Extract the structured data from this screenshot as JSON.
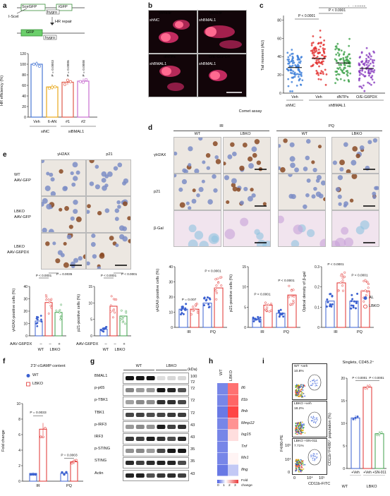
{
  "panels": {
    "a": {
      "letter": "a",
      "schematic": {
        "sce_gfp": "SceGFP",
        "igfp": "iGFP",
        "isce": "I-SceI",
        "hygro": "hygro",
        "hr_repair": "HR repair",
        "gfp": "GFP",
        "hygro2": "hygro"
      },
      "chart_data": {
        "type": "bar",
        "categories": [
          "Veh",
          "6-AN",
          "#1",
          "#2"
        ],
        "values": [
          100,
          57,
          66,
          68
        ],
        "ylabel": "HR efficiency (%)",
        "yticks": [
          0,
          20,
          40,
          60,
          80,
          100,
          120
        ],
        "ylim": [
          0,
          120
        ],
        "pvalues": [
          "P = 0.0003",
          "P = 0.0006",
          "P = 0.0008"
        ],
        "group_labels": [
          "siNC",
          "siBMAL1"
        ],
        "colors": [
          "#4a78d4",
          "#e8a81a",
          "#e05b4b",
          "#c86fd0"
        ]
      }
    },
    "b": {
      "letter": "b",
      "labels": [
        "Vehicle",
        "Vehicle",
        "dNTPs",
        "O/E-G6PDX"
      ],
      "sub": [
        "shNC",
        "shBMAL1",
        "shBMAL1",
        "shBMAL1"
      ],
      "caption": "Comet assay"
    },
    "c": {
      "letter": "c",
      "chart_data": {
        "type": "scatter",
        "categories": [
          "Veh",
          "Veh",
          "dNTPs",
          "O/E-G6PDX"
        ],
        "means": [
          28,
          38,
          33,
          27
        ],
        "ylabel": "Tail moment (AU)",
        "yticks": [
          0,
          20,
          40,
          60,
          80
        ],
        "ylim": [
          0,
          85
        ],
        "pvalues": [
          "P < 0.0001",
          "P < 0.0001",
          "P < 0.0001"
        ],
        "group_labels": [
          "shNC",
          "shBMAL1"
        ],
        "colors": [
          "#3b7dd8",
          "#e2312f",
          "#3fa24b",
          "#8a3fbf"
        ]
      }
    },
    "d": {
      "letter": "d",
      "headers": {
        "ir": "IR",
        "pq": "PQ",
        "wt": "WT",
        "lbko": "LBKO",
        "wt2": "WT",
        "lbko2": "LBKO"
      },
      "rows": [
        "γH2AX",
        "p21",
        "β-Gal"
      ],
      "charts": [
        {
          "ylabel": "γH2AX-positive cells (%)",
          "yticks": [
            0,
            10,
            20,
            30,
            40
          ],
          "groups": [
            "IR",
            "PQ"
          ],
          "al": [
            12,
            16
          ],
          "lbko": [
            12,
            26
          ],
          "pvalues": [
            "P = 0.007",
            "P < 0.0001"
          ]
        },
        {
          "ylabel": "p21-positive cells (%)",
          "yticks": [
            0,
            5,
            10,
            15
          ],
          "groups": [
            "IR",
            "PQ"
          ],
          "al": [
            2,
            3.5
          ],
          "lbko": [
            5.5,
            8
          ],
          "pvalues": [
            "P < 0.0001",
            "P < 0.0001"
          ]
        },
        {
          "ylabel": "Optical density of β-gal",
          "yticks": [
            0,
            0.1,
            0.2,
            0.3
          ],
          "groups": [
            "IR",
            "PQ"
          ],
          "al": [
            0.13,
            0.13
          ],
          "lbko": [
            0.22,
            0.18
          ],
          "pvalues": [
            "P < 0.0001",
            "P < 0.0001"
          ]
        }
      ],
      "legend": [
        "AL",
        "LBKO"
      ],
      "colors": {
        "al": "#3b60d0",
        "lbko": "#e2312f"
      }
    },
    "e": {
      "letter": "e",
      "headers": [
        "γH2AX",
        "p21"
      ],
      "rows": [
        [
          "WT",
          "AAV-GFP"
        ],
        [
          "LBKO",
          "AAV-GFP"
        ],
        [
          "LBKO",
          "AAV-G6PDX"
        ]
      ],
      "charts": [
        {
          "ylabel": "γH2AX-positive cells (%)",
          "yticks": [
            0,
            10,
            20,
            30,
            40
          ],
          "values": [
            12,
            27,
            19
          ],
          "pvalues": [
            "P = 0.0035",
            "P < 0.0001"
          ]
        },
        {
          "ylabel": "p21-positive cells (%)",
          "yticks": [
            0,
            5,
            10,
            15
          ],
          "values": [
            2,
            9,
            6
          ],
          "pvalues": [
            "P < 0.0001",
            "P < 0.0001"
          ]
        }
      ],
      "aav_label": "AAV-G6PDX",
      "aav_signs": [
        "–",
        "–",
        "+"
      ],
      "wt": "WT",
      "lbko": "LBKO",
      "colors": [
        "#3b60d0",
        "#e2312f",
        "#3fa24b"
      ]
    },
    "f": {
      "letter": "f",
      "title": "2′3′-cGAMP content",
      "legend": [
        "WT",
        "LBKO"
      ],
      "ylabel": "Fold change",
      "chart_data": {
        "type": "bar",
        "categories": [
          "IR",
          "PQ"
        ],
        "wt": [
          1,
          1
        ],
        "lbko": [
          6.7,
          2.5
        ],
        "yticks": [
          0,
          2,
          4,
          6,
          8,
          10
        ],
        "pvalues": [
          "P = 0.0033",
          "P = 0.0003"
        ]
      },
      "colors": {
        "wt": "#3b60d0",
        "lbko": "#e2312f"
      }
    },
    "g": {
      "letter": "g",
      "wt": "WT",
      "lbko": "LBKO",
      "kda": "(kDa)",
      "bands": [
        [
          "BMAL1",
          "100",
          "72"
        ],
        [
          "p-p65",
          "72",
          ""
        ],
        [
          "p-TBK1",
          "72",
          ""
        ],
        [
          "TBK1",
          "72",
          ""
        ],
        [
          "p-IRF3",
          "43",
          ""
        ],
        [
          "IRF3",
          "43",
          ""
        ],
        [
          "p-STING",
          "35",
          ""
        ],
        [
          "STING",
          "35",
          ""
        ],
        [
          "Actin",
          "43",
          ""
        ]
      ]
    },
    "h": {
      "letter": "h",
      "cols": [
        "WT",
        "LBKO"
      ],
      "genes": [
        "Il6",
        "Il1b",
        "Ifnb",
        "Mmp12",
        "Isg15",
        "Tnf",
        "Mx1",
        "Ifng"
      ],
      "wt_vals": [
        0.3,
        0.3,
        0.2,
        0.3,
        0.3,
        0.3,
        0.3,
        0.2
      ],
      "lbko_vals": [
        2.5,
        2.6,
        2.9,
        2.2,
        1.5,
        1.2,
        1.3,
        0.8
      ],
      "scale_ticks": [
        "0",
        "1",
        "2",
        "3"
      ],
      "scale_label": [
        "Fold",
        "change"
      ]
    },
    "i": {
      "letter": "i",
      "flow": [
        {
          "label": "WT +veh",
          "pct": "10.8%"
        },
        {
          "label": "LBKO +veh",
          "pct": "18.2%"
        },
        {
          "label": "LBKO +SN-011",
          "pct": "7.71%"
        }
      ],
      "x_axis": "CD11b-FITC",
      "y_axis": "F4/80-PE",
      "x_ticks": [
        "0",
        "10⁴",
        "10⁵"
      ],
      "y_ticks": [
        "10⁵",
        "10⁴",
        "0"
      ],
      "bar_title": "Singlets, CD45.2⁺",
      "chart_data": {
        "type": "bar",
        "categories": [
          "+Veh",
          "+Veh",
          "+SN-011"
        ],
        "values": [
          11.2,
          18,
          7.7
        ],
        "ylabel": "CD11b⁺F4/80⁺ population (%)",
        "yticks": [
          0,
          5,
          10,
          15,
          20
        ],
        "pvalues": [
          "P < 0.0001",
          "P < 0.0001"
        ],
        "group_labels": [
          "WT",
          "LBKO"
        ]
      },
      "colors": [
        "#3b60d0",
        "#e2312f",
        "#3fa24b"
      ]
    }
  }
}
